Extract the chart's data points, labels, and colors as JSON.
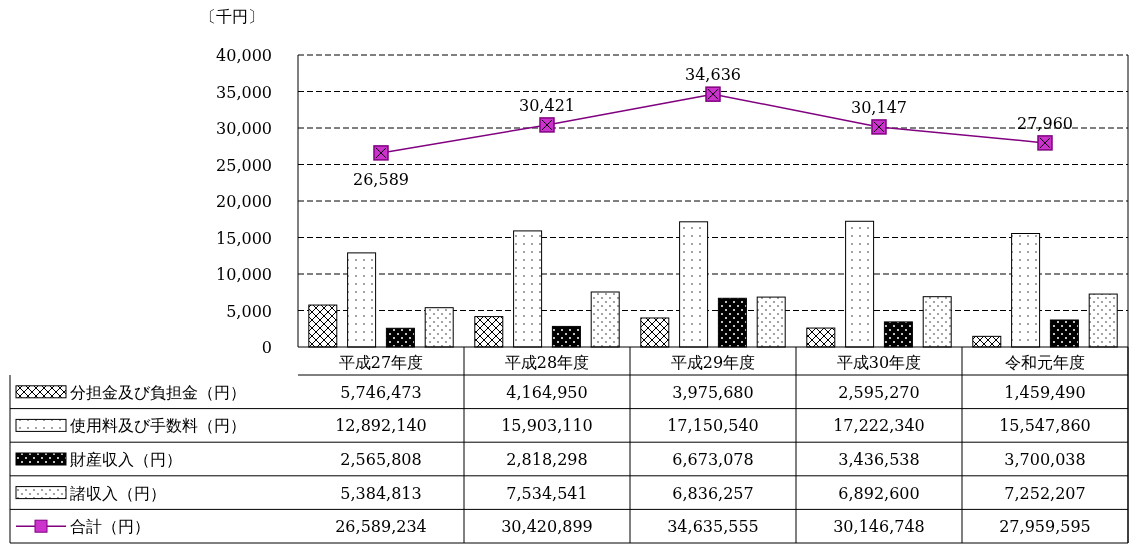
{
  "chart_data": {
    "type": "bar",
    "ylabel": "〔千円〕",
    "categories": [
      "平成27年度",
      "平成28年度",
      "平成29年度",
      "平成30年度",
      "令和元年度"
    ],
    "series": [
      {
        "name": "分担金及び負担金（円）",
        "color": "#000000",
        "values": [
          5746.473,
          4164.95,
          3975.68,
          2595.27,
          1459.49
        ]
      },
      {
        "name": "使用料及び手数料（円）",
        "color": "#000000",
        "values": [
          12892.14,
          15903.11,
          17150.54,
          17222.34,
          15547.86
        ]
      },
      {
        "name": "財産収入（円）",
        "color": "#000000",
        "values": [
          2565.808,
          2818.298,
          6673.078,
          3436.538,
          3700.038
        ]
      },
      {
        "name": "諸収入（円）",
        "color": "#000000",
        "values": [
          5384.813,
          7534.541,
          6836.257,
          6892.6,
          7252.207
        ]
      },
      {
        "name": "合計（円）",
        "type": "line",
        "color": "#800080",
        "marker": "square",
        "values": [
          26589.234,
          30420.899,
          34635.555,
          30146.748,
          27959.595
        ]
      }
    ],
    "annotations": [
      {
        "text": "26,589",
        "x": "平成27年度",
        "y": 26589
      },
      {
        "text": "30,421",
        "x": "平成28年度",
        "y": 30421
      },
      {
        "text": "34,636",
        "x": "平成29年度",
        "y": 34636
      },
      {
        "text": "30,147",
        "x": "平成30年度",
        "y": 30147
      },
      {
        "text": "27,960",
        "x": "令和元年度",
        "y": 27960
      },
      "5,746,473",
      "4,164,950",
      "3,975,680",
      "2,595,270",
      "1,459,490",
      "12,892,140",
      "15,903,110",
      "17,150,540",
      "17,222,340",
      "15,547,860",
      "2,565,808",
      "2,818,298",
      "6,673,078",
      "3,436,538",
      "3,700,038",
      "5,384,813",
      "7,534,541",
      "6,836,257",
      "6,892,600",
      "7,252,207",
      "26,589,234",
      "30,420,899",
      "34,635,555",
      "30,146,748",
      "27,959,595"
    ],
    "ylim": [
      0,
      40000
    ],
    "yticks": [
      0,
      {
        "value": 5000,
        "label": "5,000"
      },
      {
        "value": 10000,
        "label": "10,000"
      },
      {
        "value": 15000,
        "label": "15,000"
      },
      {
        "value": 20000,
        "label": "20,000"
      },
      {
        "value": 25000,
        "label": "25,000"
      },
      {
        "value": 30000,
        "label": "30,000"
      },
      {
        "value": 35000,
        "label": "35,000"
      },
      {
        "value": 40000,
        "label": "40,000"
      }
    ],
    "grid": "y",
    "legend": "bottom"
  }
}
